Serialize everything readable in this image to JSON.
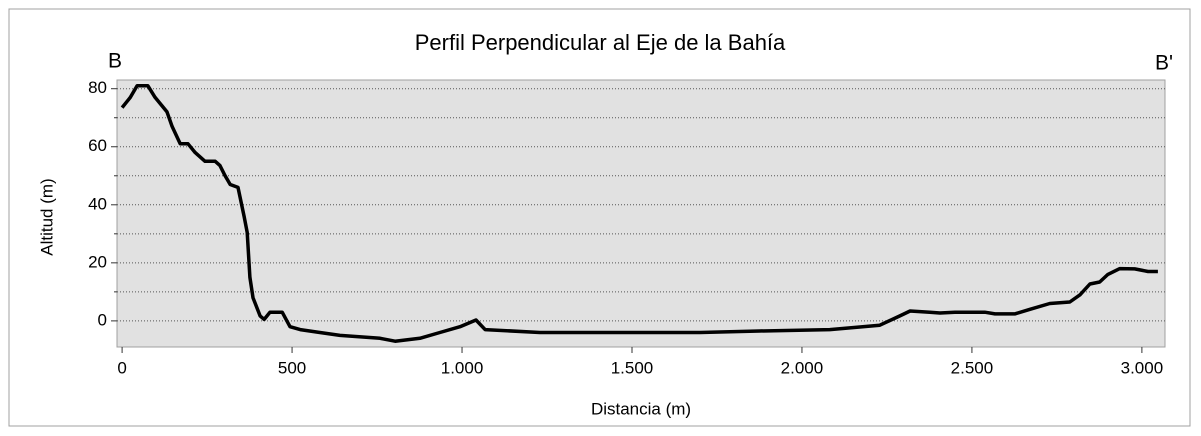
{
  "chart_data": {
    "type": "line",
    "title": "Perfil Perpendicular al Eje de la Bahía",
    "xlabel": "Distancia (m)",
    "ylabel": "Altitud (m)",
    "annotations": [
      "B",
      "B'"
    ],
    "x": [
      0,
      24,
      44,
      76,
      97,
      132,
      147,
      171,
      194,
      215,
      244,
      274,
      288,
      303,
      318,
      341,
      359,
      368,
      376,
      385,
      406,
      418,
      435,
      471,
      494,
      524,
      582,
      641,
      759,
      803,
      876,
      935,
      994,
      1041,
      1068,
      1229,
      1406,
      1700,
      1876,
      2082,
      2229,
      2288,
      2318,
      2376,
      2406,
      2450,
      2538,
      2568,
      2626,
      2671,
      2729,
      2788,
      2818,
      2847,
      2876,
      2900,
      2935,
      2979,
      3018,
      3047
    ],
    "values": [
      73.5,
      77,
      81,
      81,
      77,
      72,
      67,
      61,
      61,
      58,
      55,
      55,
      53.5,
      50,
      47,
      46,
      36,
      30.5,
      15,
      8,
      1.7,
      0.5,
      3,
      3,
      -2,
      -3,
      -4,
      -5,
      -6,
      -7,
      -6,
      -4,
      -2,
      0.3,
      -3,
      -4,
      -4,
      -4,
      -3.5,
      -3,
      -1.5,
      1.7,
      3.4,
      3,
      2.7,
      3,
      3,
      2.4,
      2.4,
      4,
      6,
      6.5,
      9,
      12.7,
      13.4,
      16,
      18,
      17.9,
      17,
      17
    ],
    "color": "#000000",
    "xlim": [
      -15,
      3068
    ],
    "ylim": [
      -9,
      83
    ],
    "xticks": [
      0,
      500,
      {
        "value": 1000,
        "label": "1.000"
      },
      {
        "value": 1500,
        "label": "1.500"
      },
      {
        "value": 2000,
        "label": "2.000"
      },
      {
        "value": 2500,
        "label": "2.500"
      },
      {
        "value": 3000,
        "label": "3.000"
      }
    ],
    "yticks": [
      0,
      20,
      40,
      60,
      80
    ],
    "yminor": [
      10,
      30,
      50,
      70
    ],
    "grid": true
  }
}
